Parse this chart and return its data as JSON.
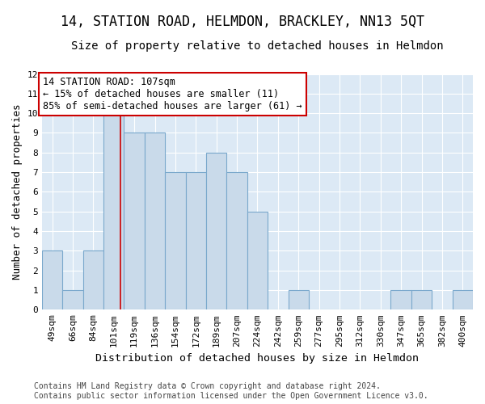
{
  "title": "14, STATION ROAD, HELMDON, BRACKLEY, NN13 5QT",
  "subtitle": "Size of property relative to detached houses in Helmdon",
  "xlabel": "Distribution of detached houses by size in Helmdon",
  "ylabel": "Number of detached properties",
  "categories": [
    "49sqm",
    "66sqm",
    "84sqm",
    "101sqm",
    "119sqm",
    "136sqm",
    "154sqm",
    "172sqm",
    "189sqm",
    "207sqm",
    "224sqm",
    "242sqm",
    "259sqm",
    "277sqm",
    "295sqm",
    "312sqm",
    "330sqm",
    "347sqm",
    "365sqm",
    "382sqm",
    "400sqm"
  ],
  "values": [
    3,
    1,
    3,
    10,
    9,
    9,
    7,
    7,
    8,
    7,
    5,
    0,
    1,
    0,
    0,
    0,
    0,
    1,
    1,
    0,
    1
  ],
  "bar_color": "#c9daea",
  "bar_edge_color": "#7aa8cc",
  "vline_color": "#cc0000",
  "vline_x": 3.33,
  "annotation_text": "14 STATION ROAD: 107sqm\n← 15% of detached houses are smaller (11)\n85% of semi-detached houses are larger (61) →",
  "annotation_box_color": "white",
  "annotation_box_edge": "#cc0000",
  "ylim": [
    0,
    12
  ],
  "yticks": [
    0,
    1,
    2,
    3,
    4,
    5,
    6,
    7,
    8,
    9,
    10,
    11,
    12
  ],
  "background_color": "#ffffff",
  "plot_bg_color": "#dce9f5",
  "grid_color": "#ffffff",
  "title_fontsize": 12,
  "subtitle_fontsize": 10,
  "xlabel_fontsize": 9.5,
  "ylabel_fontsize": 9,
  "tick_fontsize": 8,
  "annotation_fontsize": 8.5,
  "footer_fontsize": 7
}
